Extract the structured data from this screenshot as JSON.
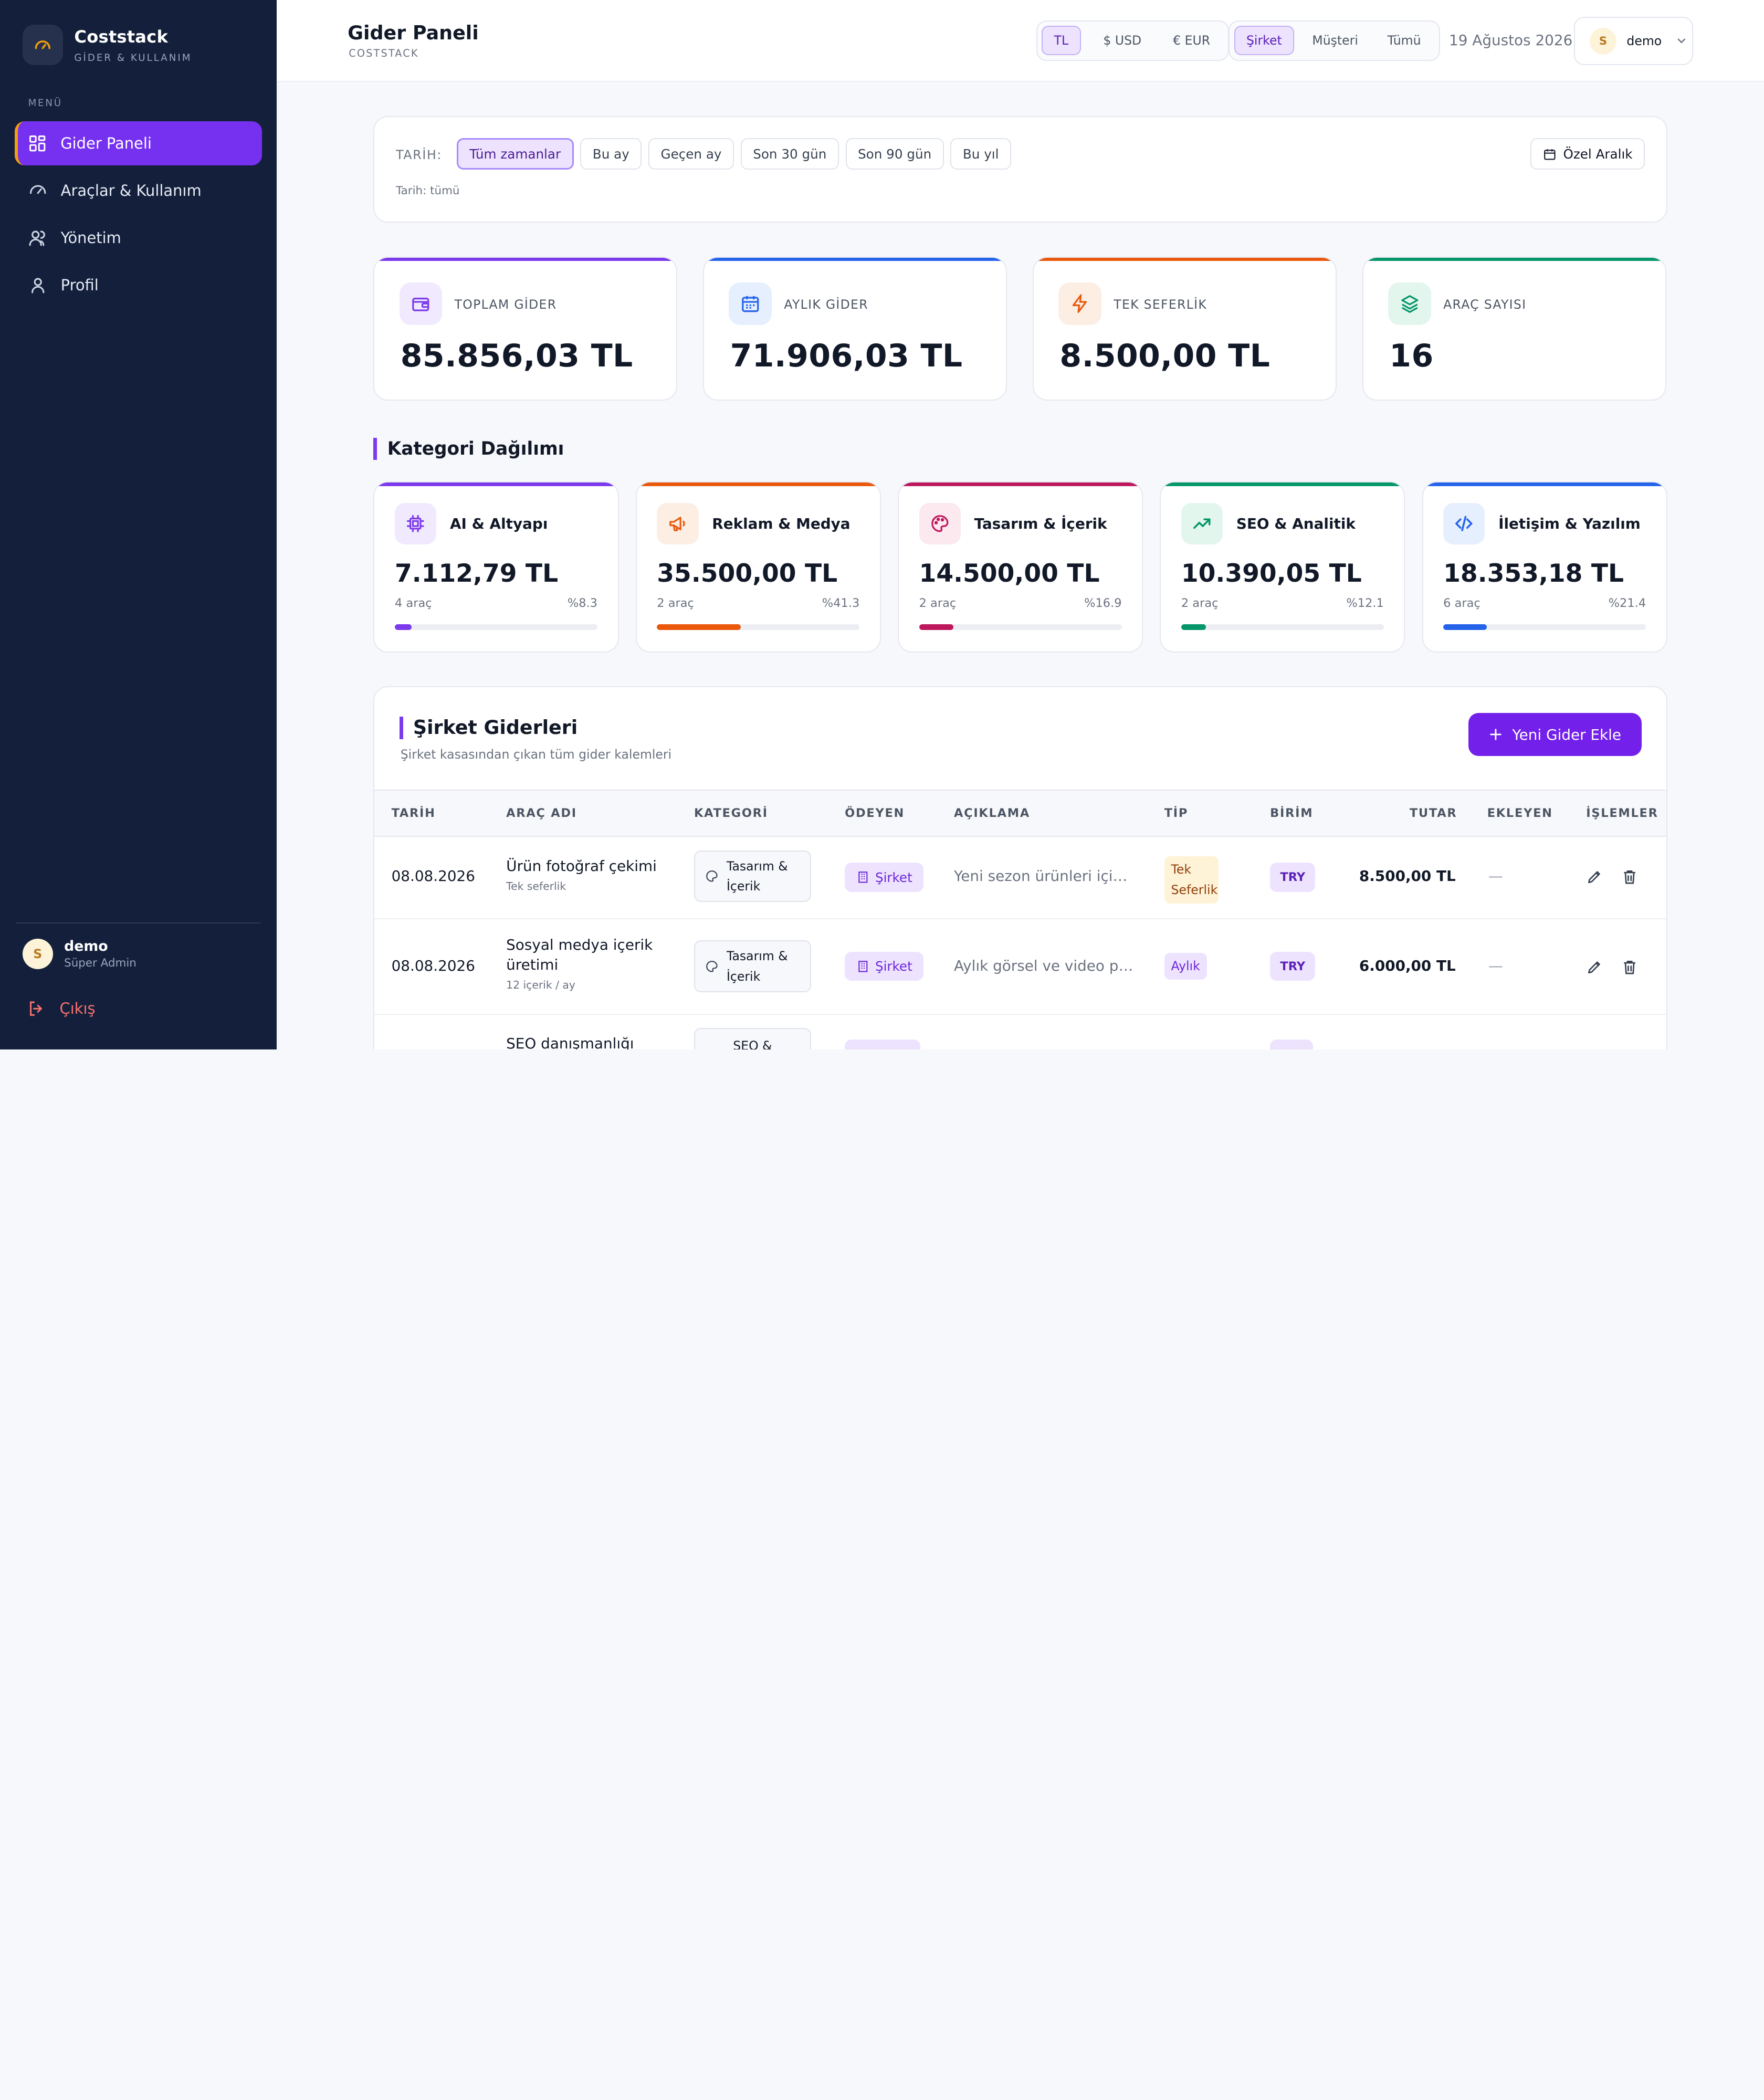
{
  "brand": {
    "name": "Coststack",
    "subtitle": "GİDER & KULLANIM"
  },
  "sidebar": {
    "menu_label": "MENÜ",
    "items": [
      {
        "label": "Gider Paneli",
        "icon": "dashboard-icon",
        "active": true
      },
      {
        "label": "Araçlar & Kullanım",
        "icon": "gauge-icon",
        "active": false
      },
      {
        "label": "Yönetim",
        "icon": "users-icon",
        "active": false
      },
      {
        "label": "Profil",
        "icon": "user-icon",
        "active": false
      }
    ],
    "user": {
      "initial": "S",
      "name": "demo",
      "role": "Süper Admin"
    },
    "logout_label": "Çıkış"
  },
  "header": {
    "title": "Gider Paneli",
    "subtitle": "COSTSTACK",
    "currencies": [
      "TL",
      "$ USD",
      "€ EUR"
    ],
    "currency_selected": "TL",
    "scopes": [
      "Şirket",
      "Müşteri",
      "Tümü"
    ],
    "scope_selected": "Şirket",
    "date": "19 Ağustos 2026",
    "user": {
      "initial": "S",
      "name": "demo"
    }
  },
  "filter": {
    "label": "TARİH:",
    "options": [
      "Tüm zamanlar",
      "Bu ay",
      "Geçen ay",
      "Son 30 gün",
      "Son 90 gün",
      "Bu yıl"
    ],
    "selected": "Tüm zamanlar",
    "custom_range": "Özel Aralık",
    "note": "Tarih: tümü"
  },
  "stats": [
    {
      "label": "TOPLAM GİDER",
      "value": "85.856,03 TL",
      "icon": "wallet-icon",
      "color": "#7c3aed",
      "bg": "#f1eafe"
    },
    {
      "label": "AYLIK GİDER",
      "value": "71.906,03 TL",
      "icon": "calendar-icon",
      "color": "#2563eb",
      "bg": "#e6effd"
    },
    {
      "label": "TEK SEFERLİK",
      "value": "8.500,00 TL",
      "icon": "lightning-icon",
      "color": "#ea580c",
      "bg": "#fdeee4"
    },
    {
      "label": "ARAÇ SAYISI",
      "value": "16",
      "icon": "layers-icon",
      "color": "#059669",
      "bg": "#e3f6ee"
    }
  ],
  "categories_title": "Kategori Dağılımı",
  "categories": [
    {
      "name": "AI & Altyapı",
      "amount": "7.112,79 TL",
      "count": "4 araç",
      "percent_label": "%8.3",
      "percent": 8.3,
      "icon": "chip-icon",
      "color": "#7c3aed",
      "bg": "#f1eafe"
    },
    {
      "name": "Reklam & Medya",
      "amount": "35.500,00 TL",
      "count": "2 araç",
      "percent_label": "%41.3",
      "percent": 41.3,
      "icon": "megaphone-icon",
      "color": "#ea580c",
      "bg": "#fdeee4"
    },
    {
      "name": "Tasarım & İçerik",
      "amount": "14.500,00 TL",
      "count": "2 araç",
      "percent_label": "%16.9",
      "percent": 16.9,
      "icon": "palette-icon",
      "color": "#be185d",
      "bg": "#fce8ef"
    },
    {
      "name": "SEO & Analitik",
      "amount": "10.390,05 TL",
      "count": "2 araç",
      "percent_label": "%12.1",
      "percent": 12.1,
      "icon": "trend-up-icon",
      "color": "#059669",
      "bg": "#e3f6ee"
    },
    {
      "name": "İletişim & Yazılım",
      "amount": "18.353,18 TL",
      "count": "6 araç",
      "percent_label": "%21.4",
      "percent": 21.4,
      "icon": "code-icon",
      "color": "#2563eb",
      "bg": "#e6effd"
    }
  ],
  "expenses": {
    "title": "Şirket Giderleri",
    "subtitle": "Şirket kasasından çıkan tüm gider kalemleri",
    "add_label": "Yeni Gider Ekle",
    "columns": [
      "TARİH",
      "ARAÇ ADI",
      "KATEGORİ",
      "ÖDEYEN",
      "AÇIKLAMA",
      "TİP",
      "BİRİM",
      "TUTAR",
      "EKLEYEN",
      "İŞLEMLER"
    ],
    "rows": [
      {
        "date": "08.08.2026",
        "name": "Ürün fotoğraf çekimi",
        "name_sub": "Tek seferlik",
        "category": "Tasarım & İçerik",
        "payer": "Şirket",
        "description": "Yeni sezon ürünleri için st...",
        "type": "Tek Seferlik",
        "unit": "TRY",
        "amount": "8.500,00 TL",
        "added_by": "—"
      },
      {
        "date": "08.08.2026",
        "name": "Sosyal medya içerik üretimi",
        "name_sub": "12 içerik / ay",
        "category": "Tasarım & İçerik",
        "payer": "Şirket",
        "description": "Aylık görsel ve video paketi",
        "type": "Aylık",
        "unit": "TRY",
        "amount": "6.000,00 TL",
        "added_by": "—"
      },
      {
        "date": "",
        "name": "SEO danışmanlığı",
        "name_sub": "",
        "category": "SEO &",
        "payer": "",
        "description": "",
        "type": "",
        "unit": "",
        "amount": "",
        "added_by": ""
      }
    ]
  }
}
